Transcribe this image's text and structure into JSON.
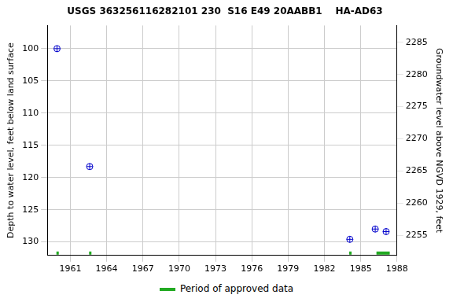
{
  "chart_data": {
    "type": "scatter",
    "title": "USGS 363256116282101 230  S16 E49 20AABB1    HA-AD63",
    "x_label": "",
    "y_label": "Depth to water level, feet below land surface",
    "y2_label": "Groundwater level above NGVD 1929, feet",
    "series": [
      {
        "name": "Depth to water level",
        "color": "#0000cc",
        "marker": "circle",
        "x": [
          1959.9,
          1962.6,
          1984.1,
          1986.2,
          1987.1
        ],
        "values": [
          100.0,
          118.3,
          129.6,
          128.0,
          128.4
        ]
      }
    ],
    "approved_periods": {
      "name": "Period of approved data",
      "color": "#22aa22",
      "ranges": [
        [
          1959.85,
          1960.0
        ],
        [
          1962.55,
          1962.7
        ],
        [
          1984.05,
          1984.2
        ],
        [
          1986.3,
          1987.4
        ]
      ]
    },
    "xlim": [
      1959.1,
      1988
    ],
    "xticks": [
      1961,
      1964,
      1967,
      1970,
      1973,
      1976,
      1979,
      1982,
      1985,
      1988
    ],
    "ylim": [
      96.4,
      132.1
    ],
    "yticks": [
      100,
      105,
      110,
      115,
      120,
      125,
      130
    ],
    "y2lim": [
      2251.9,
      2287.6
    ],
    "y2ticks": [
      2255,
      2260,
      2265,
      2270,
      2275,
      2280,
      2285
    ],
    "grid": true
  }
}
